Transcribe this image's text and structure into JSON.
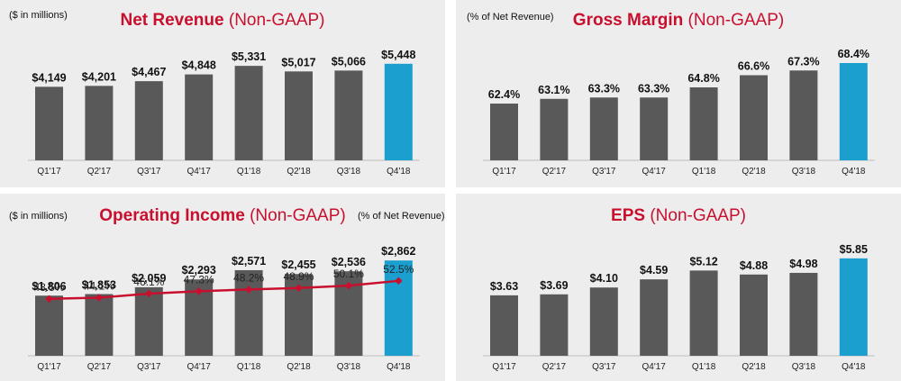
{
  "colors": {
    "bar": "#595959",
    "highlight": "#1a9fcf",
    "line": "#c8102e",
    "title": "#c8102e"
  },
  "panels": {
    "net_revenue": {
      "title_bold": "Net Revenue",
      "title_rest": " (Non-GAAP)",
      "note_left": "($ in millions)"
    },
    "gross_margin": {
      "title_bold": "Gross Margin",
      "title_rest": " (Non-GAAP)",
      "note_left": "(% of Net Revenue)"
    },
    "operating_income": {
      "title_bold": "Operating Income",
      "title_rest": " (Non-GAAP)",
      "note_left": "($ in millions)",
      "note_right": "(% of Net Revenue)"
    },
    "eps": {
      "title_bold": "EPS",
      "title_rest": " (Non-GAAP)"
    }
  },
  "chart_data": [
    {
      "id": "net_revenue",
      "type": "bar",
      "categories": [
        "Q1'17",
        "Q2'17",
        "Q3'17",
        "Q4'17",
        "Q1'18",
        "Q2'18",
        "Q3'18",
        "Q4'18"
      ],
      "values": [
        4149,
        4201,
        4467,
        4848,
        5331,
        5017,
        5066,
        5448
      ],
      "labels": [
        "$4,149",
        "$4,201",
        "$4,467",
        "$4,848",
        "$5,331",
        "$5,017",
        "$5,066",
        "$5,448"
      ],
      "ylim": [
        0,
        6100
      ],
      "highlight_index": 7
    },
    {
      "id": "gross_margin",
      "type": "bar",
      "categories": [
        "Q1'17",
        "Q2'17",
        "Q3'17",
        "Q4'17",
        "Q1'18",
        "Q2'18",
        "Q3'18",
        "Q4'18"
      ],
      "values": [
        62.4,
        63.1,
        63.3,
        63.3,
        64.8,
        66.6,
        67.3,
        68.4
      ],
      "labels": [
        "62.4%",
        "63.1%",
        "63.3%",
        "63.3%",
        "64.8%",
        "66.6%",
        "67.3%",
        "68.4%"
      ],
      "ylim": [
        54,
        70
      ],
      "highlight_index": 7
    },
    {
      "id": "operating_income",
      "type": "bar+line",
      "categories": [
        "Q1'17",
        "Q2'17",
        "Q3'17",
        "Q4'17",
        "Q1'18",
        "Q2'18",
        "Q3'18",
        "Q4'18"
      ],
      "values": [
        1806,
        1853,
        2059,
        2293,
        2571,
        2455,
        2536,
        2862
      ],
      "labels": [
        "$1,806",
        "$1,853",
        "$2,059",
        "$2,293",
        "$2,571",
        "$2,455",
        "$2,536",
        "$2,862"
      ],
      "line_values": [
        43.5,
        44.1,
        46.1,
        47.3,
        48.2,
        48.9,
        50.1,
        52.5
      ],
      "line_labels": [
        "43.5%",
        "44.1%",
        "46.1%",
        "47.3%",
        "48.2%",
        "48.9%",
        "50.1%",
        "52.5%"
      ],
      "ylim": [
        0,
        3300
      ],
      "line_ylim": [
        15,
        70
      ],
      "highlight_index": 7
    },
    {
      "id": "eps",
      "type": "bar",
      "categories": [
        "Q1'17",
        "Q2'17",
        "Q3'17",
        "Q4'17",
        "Q1'18",
        "Q2'18",
        "Q3'18",
        "Q4'18"
      ],
      "values": [
        3.63,
        3.69,
        4.1,
        4.59,
        5.12,
        4.88,
        4.98,
        5.85
      ],
      "labels": [
        "$3.63",
        "$3.69",
        "$4.10",
        "$4.59",
        "$5.12",
        "$4.88",
        "$4.98",
        "$5.85"
      ],
      "ylim": [
        0,
        6.6
      ],
      "highlight_index": 7
    }
  ]
}
